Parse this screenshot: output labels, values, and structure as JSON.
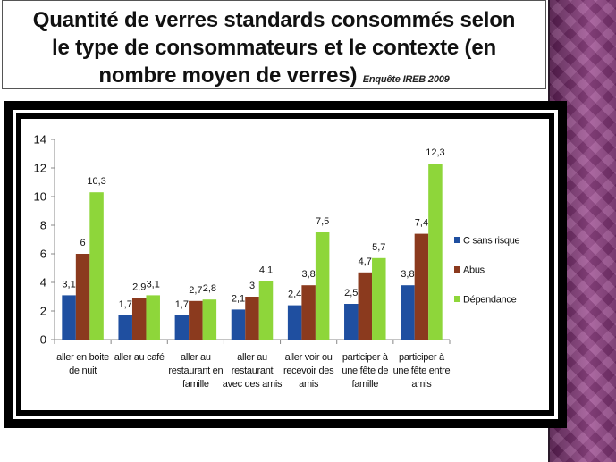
{
  "title": {
    "line1": "Quantité de verres standards consommés selon",
    "line2": "le type de consommateurs  et le contexte (en",
    "line3": "nombre moyen de verres)",
    "source": "Enquête IREB 2009"
  },
  "chart_data": {
    "type": "bar",
    "title": "",
    "xlabel": "",
    "ylabel": "",
    "ylim": [
      0,
      14
    ],
    "yticks": [
      0,
      2,
      4,
      6,
      8,
      10,
      12,
      14
    ],
    "grid": false,
    "legend_position": "right",
    "categories": [
      [
        "aller en boite",
        "de nuit"
      ],
      [
        "aller au café"
      ],
      [
        "aller au",
        "restaurant en",
        "famille"
      ],
      [
        "aller au",
        "restaurant",
        "avec des amis"
      ],
      [
        "aller voir ou",
        "recevoir des",
        "amis"
      ],
      [
        "participer à",
        "une fête de",
        "famille"
      ],
      [
        "participer à",
        "une fête entre",
        "amis"
      ]
    ],
    "series": [
      {
        "name": "C sans risque",
        "color": "#1f4fa0",
        "values": [
          3.1,
          1.7,
          1.7,
          2.1,
          2.4,
          2.5,
          3.8
        ],
        "labels": [
          "3,1",
          "1,7",
          "1,7",
          "2,1",
          "2,4",
          "2,5",
          "3,8"
        ]
      },
      {
        "name": "Abus",
        "color": "#8b3a1e",
        "values": [
          6,
          2.9,
          2.7,
          3,
          3.8,
          4.7,
          7.4
        ],
        "labels": [
          "6",
          "2,9",
          "2,7",
          "3",
          "3,8",
          "4,7",
          "7,4"
        ]
      },
      {
        "name": "Dépendance",
        "color": "#8ed63a",
        "values": [
          10.3,
          3.1,
          2.8,
          4.1,
          7.5,
          5.7,
          12.3
        ],
        "labels": [
          "10,3",
          "3,1",
          "2,8",
          "4,1",
          "7,5",
          "5,7",
          "12,3"
        ]
      }
    ]
  }
}
